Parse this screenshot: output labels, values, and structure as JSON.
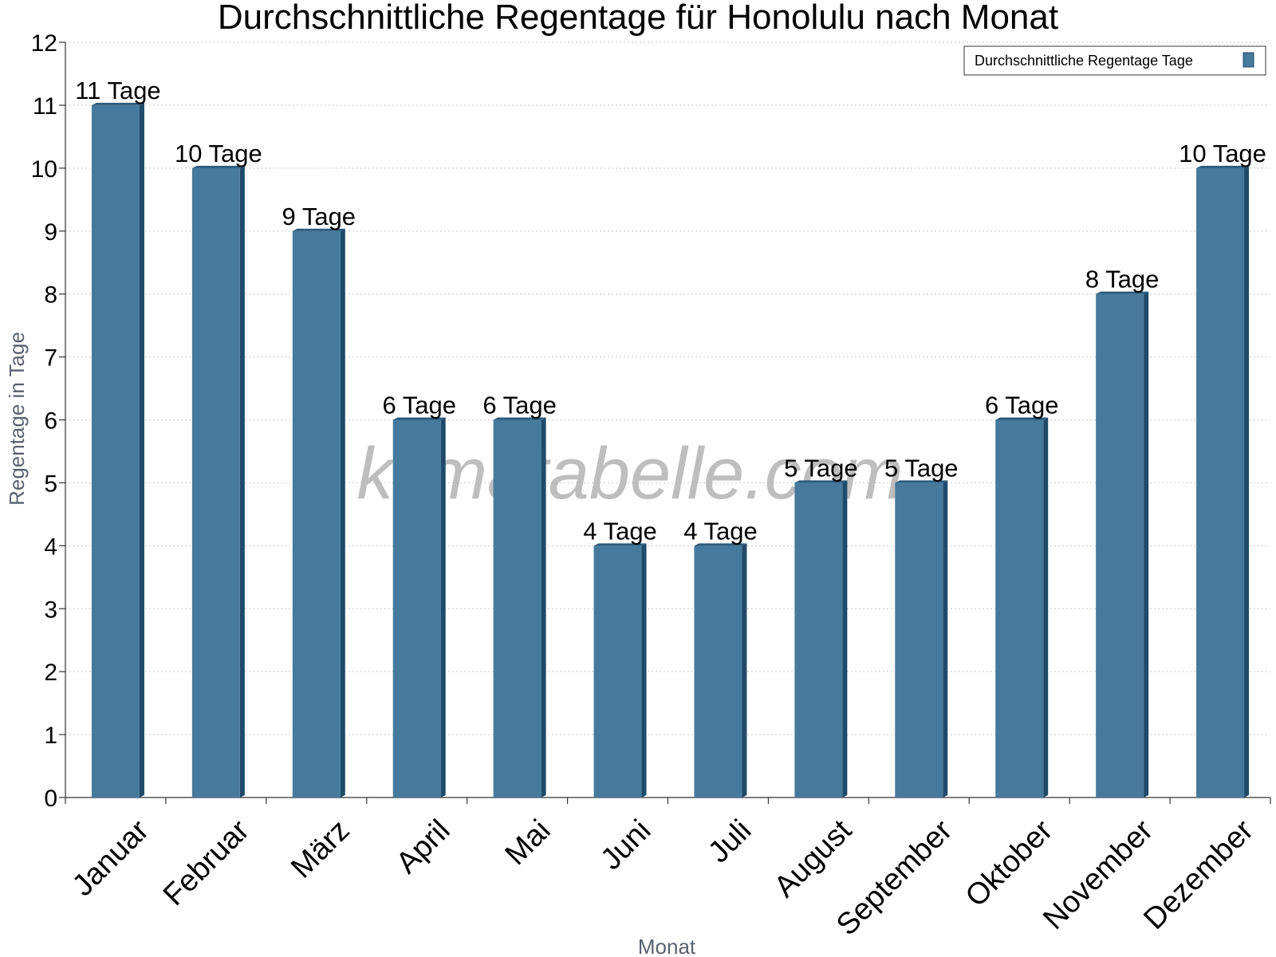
{
  "chart_data": {
    "type": "bar",
    "title": "Durchschnittliche Regentage für Honolulu nach Monat",
    "xlabel": "Monat",
    "ylabel": "Regentage in Tage",
    "categories": [
      "Januar",
      "Februar",
      "März",
      "April",
      "Mai",
      "Juni",
      "Juli",
      "August",
      "September",
      "Oktober",
      "November",
      "Dezember"
    ],
    "series": [
      {
        "name": "Durchschnittliche Regentage Tage",
        "values": [
          11,
          10,
          9,
          6,
          6,
          4,
          4,
          5,
          5,
          6,
          8,
          10
        ],
        "labels": [
          "11 Tage",
          "10 Tage",
          "9 Tage",
          "6 Tage",
          "6 Tage",
          "4 Tage",
          "4 Tage",
          "5 Tage",
          "5 Tage",
          "6 Tage",
          "8 Tage",
          "10 Tage"
        ]
      }
    ],
    "ylim": [
      0,
      12
    ],
    "yticks": [
      "0",
      "1",
      "2",
      "3",
      "4",
      "5",
      "6",
      "7",
      "8",
      "9",
      "10",
      "11",
      "12"
    ],
    "grid": true,
    "legend_position": "top-right",
    "colors": {
      "bar": "#467a9c",
      "bar_side": "#1f4a6b",
      "bar_top": "#2b5a7c"
    },
    "watermark": "klimatabelle.com"
  }
}
